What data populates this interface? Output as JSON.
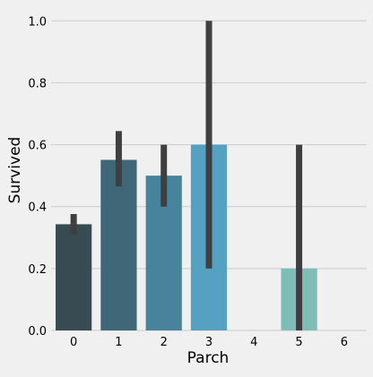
{
  "chart_data": {
    "type": "bar",
    "title": "",
    "xlabel": "Parch",
    "ylabel": "Survived",
    "categories": [
      "0",
      "1",
      "2",
      "3",
      "4",
      "5",
      "6"
    ],
    "values": [
      0.343,
      0.551,
      0.5,
      0.6,
      0.0,
      0.2,
      0.0
    ],
    "error_bars": [
      [
        0.31,
        0.376
      ],
      [
        0.465,
        0.644
      ],
      [
        0.4,
        0.6
      ],
      [
        0.2,
        1.0
      ],
      null,
      [
        0.0,
        0.6
      ],
      null
    ],
    "ylim": [
      0,
      1.05
    ],
    "yticks": [
      "0.0",
      "0.2",
      "0.4",
      "0.6",
      "0.8",
      "1.0"
    ],
    "grid": true,
    "colors": [
      "#384b53",
      "#3f6778",
      "#47849b",
      "#54a1c1",
      "#6fb1cc",
      "#7fbdb9",
      "#8fc6c4"
    ],
    "error_bar_color": "#3f3f3f",
    "grid_color": "#cbcbcb",
    "background": "#f0f0f0"
  }
}
